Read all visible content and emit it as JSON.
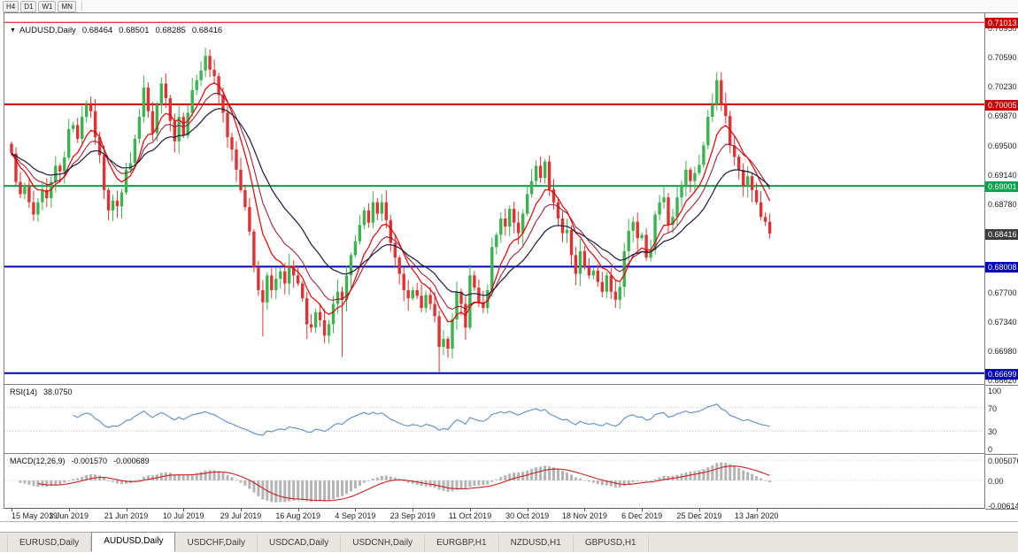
{
  "toolbar": {
    "timeframes": [
      "H4",
      "D1",
      "W1",
      "MN"
    ]
  },
  "chart": {
    "title": {
      "symbol": "AUDUSD,Daily",
      "open": "0.68464",
      "high": "0.68501",
      "low": "0.68285",
      "close": "0.68416"
    },
    "colors": {
      "up": "#3bb34f",
      "down": "#e03232",
      "ma_fast": "#e80000",
      "ma_mid": "#99102c",
      "ma_slow": "#1a1a3c",
      "rsi": "#5b8ec4",
      "macd_hist": "#b4b4b4",
      "macd_signal": "#cc2222"
    },
    "y_axis_labels": [
      "0.70950",
      "0.70590",
      "0.70230",
      "0.69870",
      "0.69500",
      "0.69140",
      "0.68780",
      "0.67700",
      "0.67340",
      "0.66980",
      "0.66620"
    ],
    "price_lines": [
      {
        "label": "0.71013",
        "value": 0.71013,
        "color": "#cc0000",
        "width": 1
      },
      {
        "label": "0.70005",
        "value": 0.70005,
        "color": "#cc0000",
        "width": 2
      },
      {
        "label": "0.69001",
        "value": 0.69001,
        "color": "#00a24b",
        "width": 2
      },
      {
        "label": "0.68008",
        "value": 0.68008,
        "color": "#0000bb",
        "width": 2
      },
      {
        "label": "0.66699",
        "value": 0.66699,
        "color": "#0000bb",
        "width": 2
      }
    ],
    "current_price": {
      "label": "0.68416",
      "value": 0.68416,
      "bg": "#3c3c3c"
    },
    "x_axis_labels": [
      "15 May 2019",
      "3 Jun 2019",
      "21 Jun 2019",
      "10 Jul 2019",
      "29 Jul 2019",
      "16 Aug 2019",
      "4 Sep 2019",
      "23 Sep 2019",
      "11 Oct 2019",
      "30 Oct 2019",
      "18 Nov 2019",
      "6 Dec 2019",
      "25 Dec 2019",
      "13 Jan 2020"
    ],
    "closes": [
      0.694,
      0.6905,
      0.689,
      0.69,
      0.688,
      0.6865,
      0.688,
      0.6895,
      0.6885,
      0.6905,
      0.6925,
      0.6918,
      0.6935,
      0.697,
      0.6975,
      0.6958,
      0.6985,
      0.7,
      0.6992,
      0.696,
      0.6938,
      0.6895,
      0.687,
      0.6882,
      0.6875,
      0.6892,
      0.692,
      0.6928,
      0.6958,
      0.6985,
      0.7021,
      0.6992,
      0.6965,
      0.7,
      0.7026,
      0.7008,
      0.698,
      0.6955,
      0.6985,
      0.6962,
      0.699,
      0.7018,
      0.703,
      0.7042,
      0.706,
      0.7043,
      0.7035,
      0.7012,
      0.699,
      0.696,
      0.6945,
      0.692,
      0.6895,
      0.6874,
      0.6844,
      0.68,
      0.6772,
      0.6757,
      0.679,
      0.6772,
      0.6786,
      0.6795,
      0.678,
      0.6802,
      0.679,
      0.678,
      0.6762,
      0.673,
      0.6726,
      0.6745,
      0.6735,
      0.6716,
      0.673,
      0.6755,
      0.677,
      0.676,
      0.679,
      0.6815,
      0.6832,
      0.6852,
      0.687,
      0.6855,
      0.688,
      0.6866,
      0.688,
      0.6858,
      0.683,
      0.6812,
      0.6792,
      0.6772,
      0.6762,
      0.6772,
      0.6765,
      0.675,
      0.6766,
      0.6755,
      0.674,
      0.6702,
      0.6712,
      0.67,
      0.6736,
      0.677,
      0.6755,
      0.6726,
      0.679,
      0.6775,
      0.6756,
      0.675,
      0.6772,
      0.6825,
      0.684,
      0.686,
      0.685,
      0.6872,
      0.6855,
      0.6842,
      0.6866,
      0.689,
      0.6906,
      0.6925,
      0.691,
      0.693,
      0.6896,
      0.688,
      0.686,
      0.6842,
      0.6846,
      0.6815,
      0.6792,
      0.682,
      0.68,
      0.679,
      0.6796,
      0.6782,
      0.677,
      0.679,
      0.677,
      0.676,
      0.6776,
      0.682,
      0.6845,
      0.6856,
      0.6836,
      0.684,
      0.6812,
      0.6822,
      0.6865,
      0.688,
      0.6886,
      0.6852,
      0.6862,
      0.6886,
      0.69,
      0.692,
      0.6906,
      0.6916,
      0.6926,
      0.695,
      0.6985,
      0.7,
      0.703,
      0.7,
      0.6986,
      0.695,
      0.6936,
      0.692,
      0.69,
      0.6912,
      0.6895,
      0.688,
      0.6862,
      0.6856,
      0.68416
    ],
    "high_overrides": {
      "44": 0.707,
      "160": 0.704
    },
    "low_overrides": {
      "57": 0.6715,
      "67": 0.6712,
      "75": 0.669,
      "97": 0.6671
    }
  },
  "rsi": {
    "label": "RSI(14)",
    "value": "38.0750",
    "period": 14,
    "scale_labels": [
      "100",
      "70",
      "30",
      "0"
    ],
    "level_lines": [
      70,
      30
    ]
  },
  "macd": {
    "label": "MACD(12,26,9)",
    "main_value": "-0.001570",
    "signal_value": "-0.000689",
    "scale_labels": [
      "0.005076",
      "0.00",
      "-0.006148"
    ]
  },
  "tabs": [
    {
      "label": "EURUSD,Daily",
      "active": false
    },
    {
      "label": "AUDUSD,Daily",
      "active": true
    },
    {
      "label": "USDCHF,Daily",
      "active": false
    },
    {
      "label": "USDCAD,Daily",
      "active": false
    },
    {
      "label": "USDCNH,Daily",
      "active": false
    },
    {
      "label": "EURGBP,H1",
      "active": false
    },
    {
      "label": "NZDUSD,H1",
      "active": false
    },
    {
      "label": "GBPUSD,H1",
      "active": false
    }
  ]
}
